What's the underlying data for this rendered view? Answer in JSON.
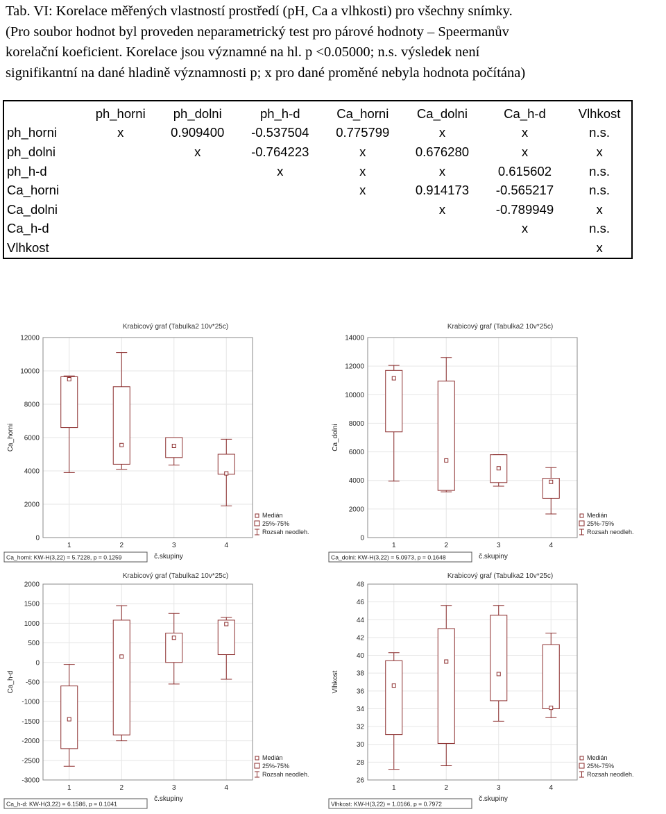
{
  "caption": {
    "lines": [
      "Tab. VI: Korelace měřených vlastností prostředí (pH, Ca a vlhkosti) pro všechny snímky.",
      "(Pro soubor hodnot byl proveden neparametrický test pro párové hodnoty – Speermanův",
      "korelační koeficient. Korelace jsou významné na hl. p <0.05000; n.s. výsledek není",
      "signifikantní na dané hladině významnosti p; x pro dané proměné nebyla hodnota počítána)"
    ]
  },
  "table": {
    "columns": [
      "",
      "ph_horni",
      "ph_dolni",
      "ph_h-d",
      "Ca_horni",
      "Ca_dolni",
      "Ca_h-d",
      "Vlhkost"
    ],
    "rows": [
      {
        "label": "ph_horni",
        "cells": [
          "x",
          "0.909400",
          "-0.537504",
          "0.775799",
          "x",
          "x",
          "n.s."
        ]
      },
      {
        "label": "ph_dolni",
        "cells": [
          "",
          "x",
          "-0.764223",
          "x",
          "0.676280",
          "x",
          "x"
        ]
      },
      {
        "label": "ph_h-d",
        "cells": [
          "",
          "",
          "x",
          "x",
          "x",
          "0.615602",
          "n.s."
        ]
      },
      {
        "label": "Ca_horni",
        "cells": [
          "",
          "",
          "",
          "x",
          "0.914173",
          "-0.565217",
          "n.s."
        ]
      },
      {
        "label": "Ca_dolni",
        "cells": [
          "",
          "",
          "",
          "",
          "x",
          "-0.789949",
          "x"
        ]
      },
      {
        "label": "Ca_h-d",
        "cells": [
          "",
          "",
          "",
          "",
          "",
          "x",
          "n.s."
        ]
      },
      {
        "label": "Vlhkost",
        "cells": [
          "",
          "",
          "",
          "",
          "",
          "",
          "x"
        ]
      }
    ]
  },
  "chart_data": [
    {
      "type": "box",
      "title": "Krabicový graf (Tabulka2 10v*25c)",
      "ylabel": "Ca_horni",
      "xlabel": "č.skupiny",
      "categories": [
        "1",
        "2",
        "3",
        "4"
      ],
      "ylim": [
        0,
        12000
      ],
      "yticks": [
        0,
        2000,
        4000,
        6000,
        8000,
        10000,
        12000
      ],
      "boxes": [
        {
          "median": 9500,
          "q1": 6600,
          "q3": 9650,
          "min": 3900,
          "max": 9700
        },
        {
          "median": 5550,
          "q1": 4400,
          "q3": 9050,
          "min": 4100,
          "max": 11100
        },
        {
          "median": 5500,
          "q1": 4800,
          "q3": 6000,
          "min": 4350,
          "max": 6000
        },
        {
          "median": 3850,
          "q1": 3800,
          "q3": 5000,
          "min": 1900,
          "max": 5900
        }
      ],
      "legend": [
        "Medián",
        "25%-75%",
        "Rozsah neodleh."
      ],
      "stat": "Ca_horni: KW-H(3,22) = 5.7228, p = 0.1259"
    },
    {
      "type": "box",
      "title": "Krabicový graf (Tabulka2 10v*25c)",
      "ylabel": "Ca_dolni",
      "xlabel": "č.skupiny",
      "categories": [
        "1",
        "2",
        "3",
        "4"
      ],
      "ylim": [
        0,
        14000
      ],
      "yticks": [
        0,
        2000,
        4000,
        6000,
        8000,
        10000,
        12000,
        14000
      ],
      "boxes": [
        {
          "median": 11150,
          "q1": 7400,
          "q3": 11700,
          "min": 3950,
          "max": 12050
        },
        {
          "median": 5400,
          "q1": 3300,
          "q3": 10950,
          "min": 3200,
          "max": 12600
        },
        {
          "median": 4850,
          "q1": 3850,
          "q3": 5800,
          "min": 3600,
          "max": 5800
        },
        {
          "median": 3900,
          "q1": 2750,
          "q3": 4150,
          "min": 1650,
          "max": 4900
        }
      ],
      "legend": [
        "Medián",
        "25%-75%",
        "Rozsah neodleh."
      ],
      "stat": "Ca_dolni: KW-H(3,22) = 5.0973, p = 0.1648"
    },
    {
      "type": "box",
      "title": "Krabicový graf (Tabulka2 10v*25c)",
      "ylabel": "Ca_h-d",
      "xlabel": "č.skupiny",
      "categories": [
        "1",
        "2",
        "3",
        "4"
      ],
      "ylim": [
        -3000,
        2000
      ],
      "yticks": [
        -3000,
        -2500,
        -2000,
        -1500,
        -1000,
        -500,
        0,
        500,
        1000,
        1500,
        2000
      ],
      "boxes": [
        {
          "median": -1450,
          "q1": -2200,
          "q3": -600,
          "min": -2650,
          "max": -50
        },
        {
          "median": 150,
          "q1": -1850,
          "q3": 1080,
          "min": -2000,
          "max": 1450
        },
        {
          "median": 630,
          "q1": 0,
          "q3": 750,
          "min": -550,
          "max": 1250
        },
        {
          "median": 980,
          "q1": 200,
          "q3": 1080,
          "min": -430,
          "max": 1150
        }
      ],
      "legend": [
        "Medián",
        "25%-75%",
        "Rozsah neodleh."
      ],
      "stat": "Ca_h-d: KW-H(3,22) = 6.1586, p = 0.1041"
    },
    {
      "type": "box",
      "title": "Krabicový graf (Tabulka2 10v*25c)",
      "ylabel": "Vlhkost",
      "xlabel": "č.skupiny",
      "categories": [
        "1",
        "2",
        "3",
        "4"
      ],
      "ylim": [
        26,
        48
      ],
      "yticks": [
        26,
        28,
        30,
        32,
        34,
        36,
        38,
        40,
        42,
        44,
        46,
        48
      ],
      "boxes": [
        {
          "median": 36.6,
          "q1": 31.1,
          "q3": 39.4,
          "min": 27.2,
          "max": 40.3
        },
        {
          "median": 39.3,
          "q1": 30.1,
          "q3": 43.0,
          "min": 27.6,
          "max": 45.6
        },
        {
          "median": 37.9,
          "q1": 34.9,
          "q3": 44.5,
          "min": 32.6,
          "max": 45.6
        },
        {
          "median": 34.1,
          "q1": 34.0,
          "q3": 41.2,
          "min": 33.0,
          "max": 42.5
        }
      ],
      "legend": [
        "Medián",
        "25%-75%",
        "Rozsah neodleh."
      ],
      "stat": "Vlhkost: KW-H(3,22) = 1.0166, p = 0.7972"
    }
  ]
}
